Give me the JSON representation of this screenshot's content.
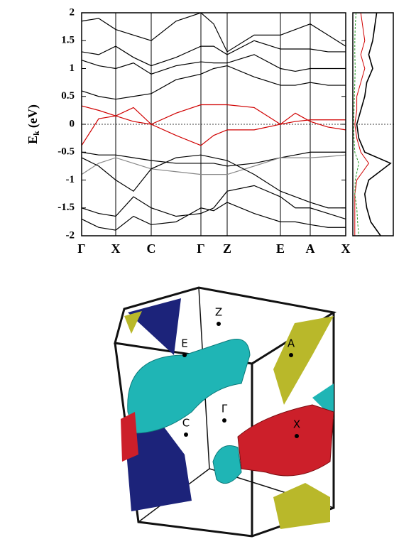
{
  "chart_data": [
    {
      "type": "line",
      "ylabel_main": "E",
      "ylabel_sub": "k",
      "ylabel_unit": "(eV)",
      "x": [
        0,
        0.24,
        0.48,
        0.73,
        0.98,
        1.33,
        1.68,
        1.86,
        2.05,
        2.43,
        2.8,
        3.01,
        3.22,
        3.47,
        3.72
      ],
      "xlim": [
        0,
        3.72
      ],
      "xticks": [
        {
          "value": 0,
          "label": "Γ"
        },
        {
          "value": 0.48,
          "label": "X"
        },
        {
          "value": 0.98,
          "label": "C"
        },
        {
          "value": 1.68,
          "label": "Γ"
        },
        {
          "value": 2.05,
          "label": "Z"
        },
        {
          "value": 2.8,
          "label": "E"
        },
        {
          "value": 3.22,
          "label": "A"
        },
        {
          "value": 3.72,
          "label": "X"
        }
      ],
      "ylim": [
        -2,
        2
      ],
      "yticks": [
        -2,
        -1.5,
        -1,
        -0.5,
        0,
        0.5,
        1,
        1.5,
        2
      ],
      "fermi_level": 0,
      "series": [
        {
          "color": "#d00000",
          "values": [
            0.33,
            0.25,
            0.15,
            0.05,
            0,
            0.2,
            0.35,
            0.35,
            0.35,
            0.3,
            0,
            0.05,
            0.08,
            0.08,
            0.08
          ]
        },
        {
          "color": "#d00000",
          "values": [
            -0.38,
            0.1,
            0.15,
            0.3,
            0,
            -0.2,
            -0.38,
            -0.2,
            -0.1,
            -0.1,
            0,
            0.2,
            0.05,
            -0.05,
            -0.1
          ]
        },
        {
          "color": "#000000",
          "values": [
            0.6,
            0.5,
            0.45,
            0.5,
            0.55,
            0.8,
            0.9,
            1.0,
            1.05,
            0.85,
            0.7,
            0.7,
            0.75,
            0.7,
            0.7
          ]
        },
        {
          "color": "#000000",
          "values": [
            1.15,
            1.05,
            1.0,
            1.1,
            0.9,
            1.05,
            1.12,
            1.1,
            1.1,
            1.25,
            1.0,
            0.95,
            1.0,
            1.0,
            1.0
          ]
        },
        {
          "color": "#000000",
          "values": [
            1.3,
            1.25,
            1.4,
            1.2,
            1.05,
            1.2,
            1.4,
            1.4,
            1.25,
            1.5,
            1.35,
            1.35,
            1.35,
            1.3,
            1.3
          ]
        },
        {
          "color": "#000000",
          "values": [
            1.85,
            1.9,
            1.7,
            1.6,
            1.5,
            1.85,
            2.0,
            1.8,
            1.3,
            1.6,
            1.6,
            1.7,
            1.8,
            1.6,
            1.4
          ]
        },
        {
          "color": "#000000",
          "values": [
            -0.5,
            -0.55,
            -0.55,
            -0.6,
            -0.65,
            -0.7,
            -0.7,
            -0.7,
            -0.75,
            -0.7,
            -0.6,
            -0.55,
            -0.5,
            -0.5,
            -0.5
          ]
        },
        {
          "color": "#888888",
          "values": [
            -0.9,
            -0.7,
            -0.6,
            -0.7,
            -0.8,
            -0.85,
            -0.9,
            -0.9,
            -0.9,
            -0.75,
            -0.6,
            -0.6,
            -0.6,
            -0.58,
            -0.55
          ]
        },
        {
          "color": "#000000",
          "values": [
            -0.6,
            -0.75,
            -1.0,
            -1.2,
            -0.8,
            -0.6,
            -0.55,
            -0.6,
            -0.65,
            -0.9,
            -1.2,
            -1.3,
            -1.4,
            -1.5,
            -1.5
          ]
        },
        {
          "color": "#000000",
          "values": [
            -1.5,
            -1.6,
            -1.65,
            -1.3,
            -1.5,
            -1.65,
            -1.6,
            -1.5,
            -1.2,
            -1.1,
            -1.3,
            -1.5,
            -1.5,
            -1.6,
            -1.7
          ]
        },
        {
          "color": "#000000",
          "values": [
            -1.7,
            -1.85,
            -1.9,
            -1.65,
            -1.8,
            -1.75,
            -1.5,
            -1.55,
            -1.4,
            -1.6,
            -1.75,
            -1.75,
            -1.8,
            -1.85,
            -1.85
          ]
        }
      ]
    },
    {
      "type": "dos",
      "energies": [
        2,
        1.75,
        1.5,
        1.25,
        1,
        0.75,
        0.5,
        0.25,
        0,
        -0.25,
        -0.5,
        -0.7,
        -1,
        -1.25,
        -1.5,
        -1.75,
        -2
      ],
      "xlim": [
        0,
        1
      ],
      "series": [
        {
          "color": "#000000",
          "values": [
            0.6,
            0.55,
            0.5,
            0.4,
            0.5,
            0.35,
            0.3,
            0.2,
            0.1,
            0.15,
            0.3,
            0.95,
            0.4,
            0.3,
            0.35,
            0.45,
            0.7
          ]
        },
        {
          "color": "#d00000",
          "values": [
            0.2,
            0.25,
            0.3,
            0.2,
            0.3,
            0.2,
            0.1,
            0.1,
            0.05,
            0.1,
            0.2,
            0.4,
            0.1,
            0.05,
            0.05,
            0.05,
            0.05
          ]
        },
        {
          "color": "#2a9d2a",
          "values": [
            0.08,
            0.06,
            0.05,
            0.05,
            0.06,
            0.05,
            0.04,
            0.03,
            0.02,
            0.03,
            0.05,
            0.15,
            0.06,
            0.05,
            0.1,
            0.12,
            0.15
          ]
        }
      ]
    }
  ],
  "fermi_surface": {
    "points": [
      "Z",
      "E",
      "A",
      "Γ",
      "C",
      "X"
    ]
  }
}
